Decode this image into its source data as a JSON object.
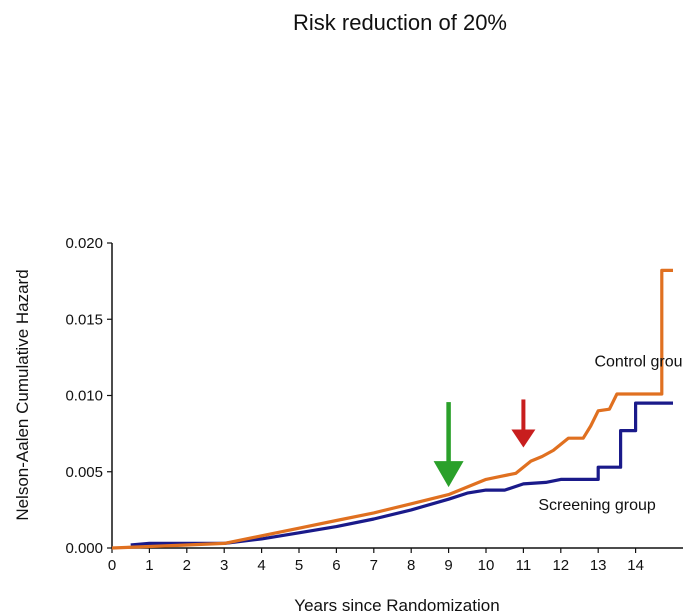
{
  "chart_data": {
    "type": "line",
    "title": "Risk reduction of 20%",
    "xlabel": "Years since Randomization",
    "ylabel": "Nelson-Aalen Cumulative Hazard",
    "xlim": [
      0,
      15
    ],
    "ylim": [
      0,
      0.02
    ],
    "x_ticks": [
      0,
      1,
      2,
      3,
      4,
      5,
      6,
      7,
      8,
      9,
      10,
      11,
      12,
      13,
      14
    ],
    "y_ticks": [
      "0.000",
      "0.005",
      "0.010",
      "0.015",
      "0.020"
    ],
    "grid": false,
    "series": [
      {
        "name": "Control group",
        "color": "#e07020",
        "points": [
          [
            0,
            0
          ],
          [
            1,
            0.0001
          ],
          [
            2,
            0.0002
          ],
          [
            3,
            0.0003
          ],
          [
            4,
            0.0008
          ],
          [
            5,
            0.0013
          ],
          [
            6,
            0.0018
          ],
          [
            7,
            0.0023
          ],
          [
            8,
            0.0029
          ],
          [
            9,
            0.0035
          ],
          [
            9.5,
            0.004
          ],
          [
            10,
            0.0045
          ],
          [
            10.4,
            0.0047
          ],
          [
            10.8,
            0.0049
          ],
          [
            11.2,
            0.0057
          ],
          [
            11.5,
            0.006
          ],
          [
            11.8,
            0.0064
          ],
          [
            12.2,
            0.0072
          ],
          [
            12.6,
            0.0072
          ],
          [
            12.8,
            0.008
          ],
          [
            13,
            0.009
          ],
          [
            13.3,
            0.0091
          ],
          [
            13.5,
            0.0101
          ],
          [
            14,
            0.0101
          ],
          [
            14.7,
            0.0101
          ],
          [
            14.7,
            0.0182
          ],
          [
            15,
            0.0182
          ]
        ],
        "step": false
      },
      {
        "name": "Screening group",
        "color": "#1a1a8a",
        "points": [
          [
            0.5,
            0.0002
          ],
          [
            1,
            0.0003
          ],
          [
            2,
            0.0003
          ],
          [
            3,
            0.0003
          ],
          [
            4,
            0.0006
          ],
          [
            5,
            0.001
          ],
          [
            6,
            0.0014
          ],
          [
            7,
            0.0019
          ],
          [
            8,
            0.0025
          ],
          [
            9,
            0.0032
          ],
          [
            9.5,
            0.0036
          ],
          [
            10,
            0.0038
          ],
          [
            10.5,
            0.0038
          ],
          [
            11,
            0.0042
          ],
          [
            11.6,
            0.0043
          ],
          [
            12,
            0.0045
          ],
          [
            13,
            0.0045
          ],
          [
            13,
            0.0053
          ],
          [
            13.6,
            0.0053
          ],
          [
            13.6,
            0.0077
          ],
          [
            14,
            0.0077
          ],
          [
            14,
            0.0095
          ],
          [
            15,
            0.0095
          ]
        ],
        "step": false
      }
    ],
    "annotations": [
      {
        "type": "arrow",
        "color": "#2aa02a",
        "x": 9,
        "y_data": 0.0036,
        "direction": "down"
      },
      {
        "type": "arrow",
        "color": "#c81e1e",
        "x": 11,
        "y_data": 0.0062,
        "direction": "down"
      }
    ],
    "series_labels": [
      {
        "text": "Control group",
        "x": 12.9,
        "y": 0.0119
      },
      {
        "text": "Screening group",
        "x": 11.4,
        "y": 0.0025
      }
    ]
  }
}
